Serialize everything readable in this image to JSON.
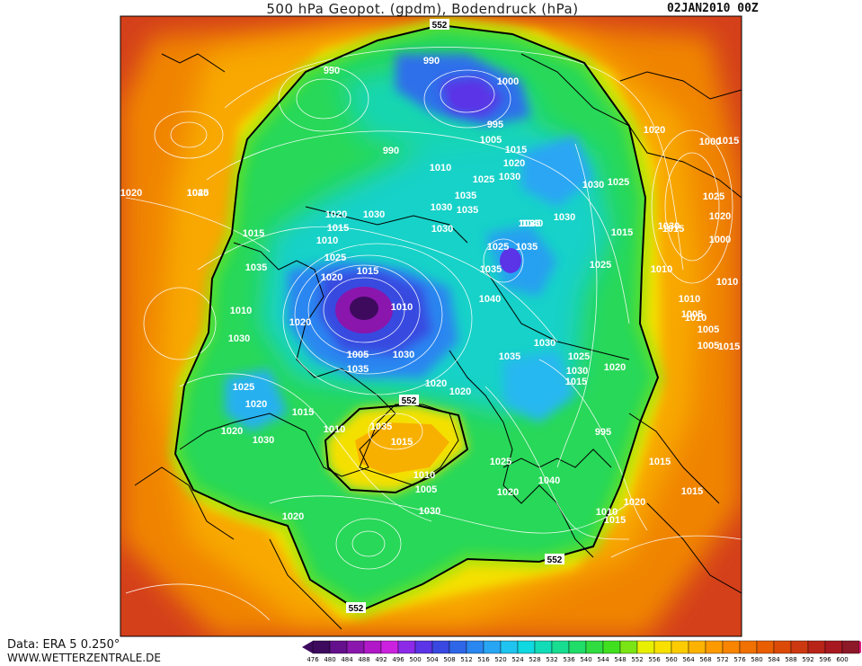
{
  "map": {
    "title": "500 hPa Geopot. (gpdm), Bodendruck (hPa)",
    "date": "02JAN2010 00Z",
    "credits": {
      "data_source": "Data: ERA 5 0.250°",
      "website": "WWW.WETTERZENTRALE.DE"
    },
    "contour_highlight_label": "552",
    "highlight_contour_labels": [
      "552",
      "552",
      "552",
      "552"
    ],
    "pressure_labels": [
      "990",
      "990",
      "1000",
      "995",
      "1005",
      "990",
      "1015",
      "1020",
      "1010",
      "1025",
      "1030",
      "1030",
      "1025",
      "1035",
      "1030",
      "1035",
      "1040",
      "1030",
      "1020",
      "1015",
      "1015",
      "1035",
      "1030",
      "1030",
      "1025",
      "1015",
      "1010",
      "1025",
      "1015",
      "1020",
      "1010",
      "1035",
      "1040",
      "1035",
      "1025",
      "1020",
      "1040",
      "1020",
      "1010",
      "1030",
      "1030",
      "1005",
      "1035",
      "1020",
      "1020",
      "1030",
      "1035",
      "1025",
      "1030",
      "1025",
      "1020",
      "1015",
      "1010",
      "1020",
      "1030",
      "1035",
      "1015",
      "1010",
      "1005",
      "1030",
      "1025",
      "1020",
      "1040",
      "1035",
      "1025",
      "1020",
      "1020",
      "1015",
      "995",
      "1010",
      "1015",
      "1030",
      "1025",
      "1020",
      "1015",
      "1000",
      "1010",
      "1005",
      "1005",
      "1015",
      "1010",
      "1005",
      "1010",
      "1000",
      "1015",
      "1020",
      "1015",
      "1020",
      "1010",
      "1015",
      "1020"
    ],
    "colorbar_labels": [
      "476",
      "480",
      "484",
      "488",
      "492",
      "496",
      "500",
      "504",
      "508",
      "512",
      "516",
      "520",
      "524",
      "528",
      "532",
      "536",
      "540",
      "544",
      "548",
      "552",
      "556",
      "560",
      "564",
      "568",
      "572",
      "576",
      "580",
      "584",
      "588",
      "592",
      "596",
      "600"
    ],
    "colorbar_colors": [
      "#3d0a5e",
      "#64108c",
      "#8a16ad",
      "#b018c8",
      "#cc22e0",
      "#8c2ae8",
      "#5a34e6",
      "#3848e0",
      "#2e66e8",
      "#2a86f0",
      "#28a6f4",
      "#20c4f0",
      "#10d8e0",
      "#12dcb8",
      "#18dc90",
      "#20dc68",
      "#30dc40",
      "#40e020",
      "#7ae414",
      "#e8f000",
      "#f8e000",
      "#fccc00",
      "#fcb200",
      "#fc9a00",
      "#f88400",
      "#f07000",
      "#e85e00",
      "#dc4a08",
      "#cc3810",
      "#b82418",
      "#a81820",
      "#8c1828"
    ],
    "colors": {
      "polar_low": "#6a10a0",
      "trough": "#2a7ef0",
      "mid": "#20d470",
      "ridge_552": "#e4ec10",
      "warm": "#f49a00",
      "hot": "#d4401a"
    }
  }
}
